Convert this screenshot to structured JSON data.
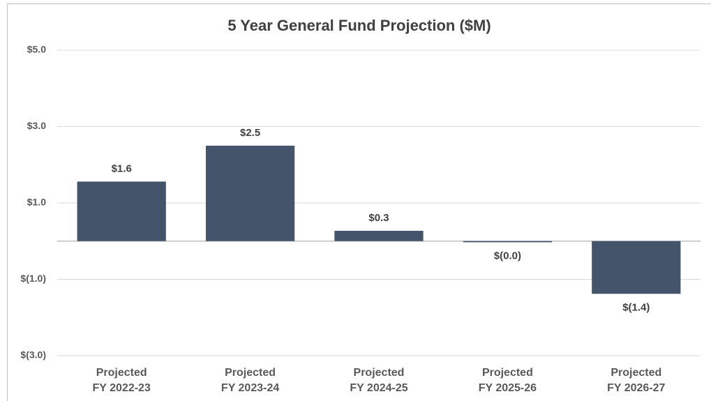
{
  "chart_data": {
    "type": "bar",
    "title": "5 Year General Fund Projection ($M)",
    "categories": [
      [
        "Projected",
        "FY 2022-23"
      ],
      [
        "Projected",
        "FY 2023-24"
      ],
      [
        "Projected",
        "FY 2024-25"
      ],
      [
        "Projected",
        "FY 2025-26"
      ],
      [
        "Projected",
        "FY 2026-27"
      ]
    ],
    "values": [
      1.56,
      2.5,
      0.27,
      -0.03,
      -1.38
    ],
    "value_labels": [
      "$1.6",
      "$2.5",
      "$0.3",
      "$(0.0)",
      "$(1.4)"
    ],
    "color": "#44546a",
    "ylim": [
      -3,
      5
    ],
    "yticks": [
      {
        "value": 5,
        "label": "$5.0"
      },
      {
        "value": 3,
        "label": "$3.0"
      },
      {
        "value": 1,
        "label": "$1.0"
      },
      {
        "value": -1,
        "label": "$(1.0)"
      },
      {
        "value": -3,
        "label": "$(3.0)"
      }
    ],
    "grid": true
  }
}
